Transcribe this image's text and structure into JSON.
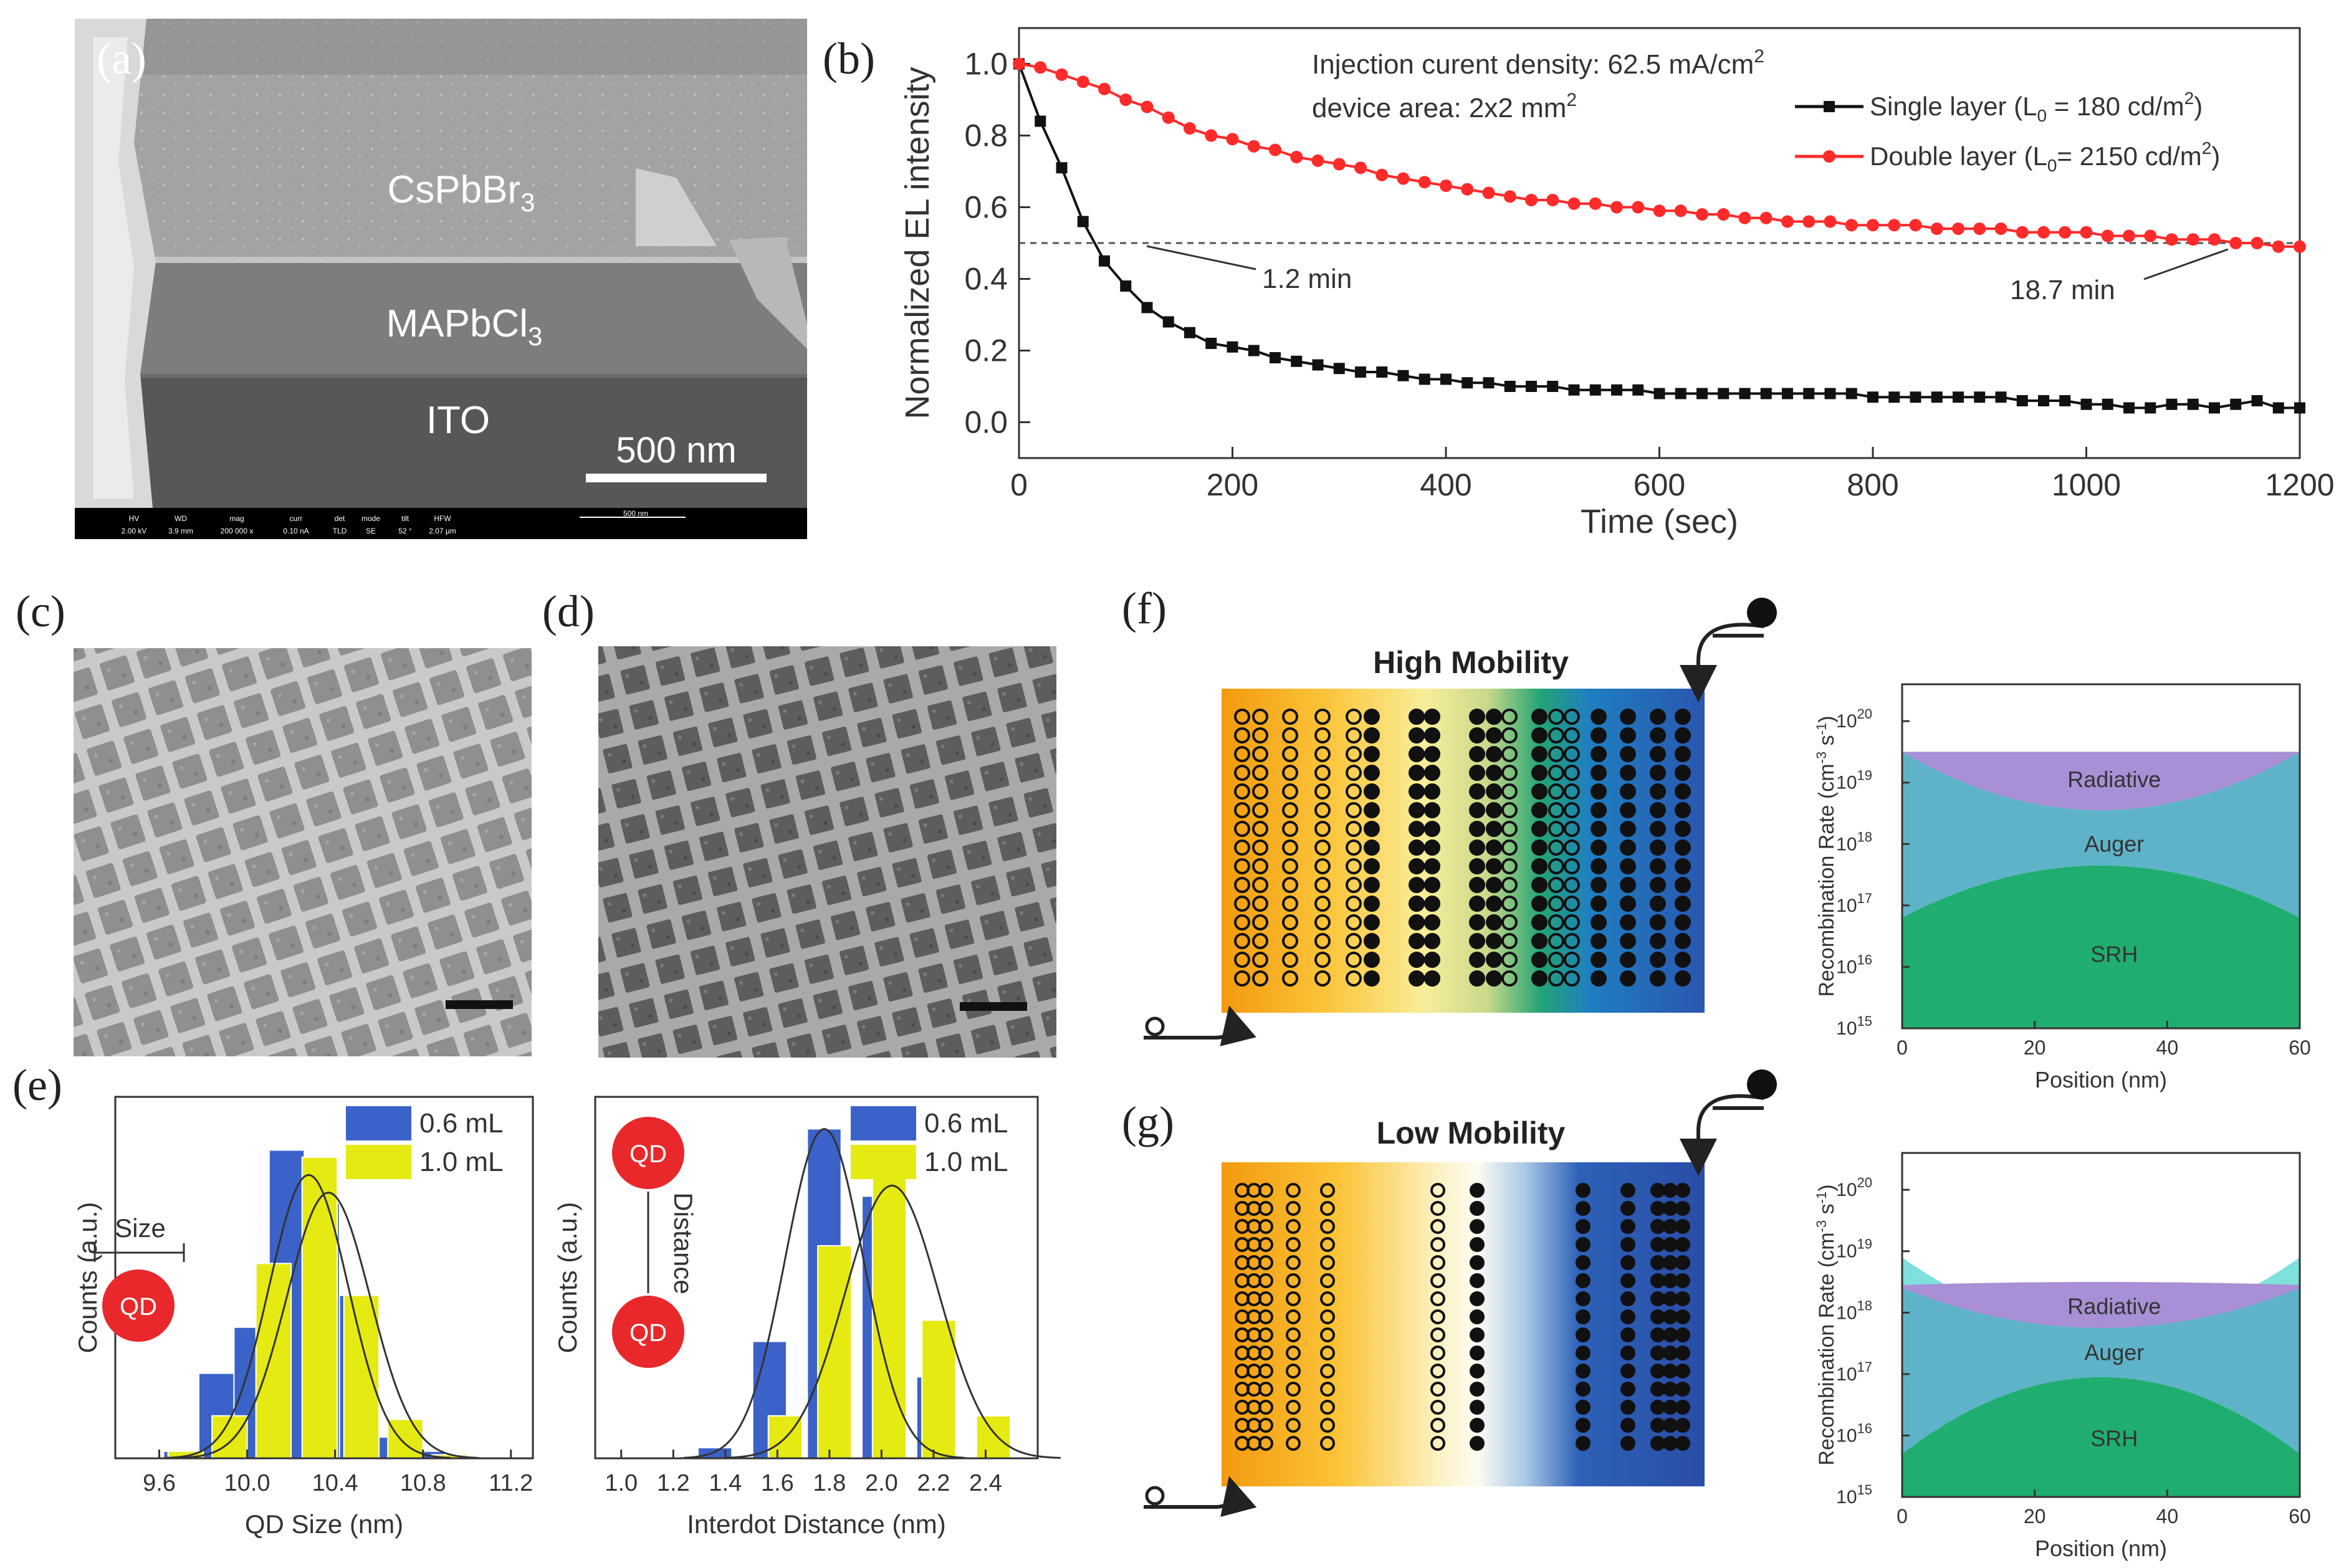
{
  "figure": {
    "panel_labels": {
      "a": "(a)",
      "b": "(b)",
      "c": "(c)",
      "d": "(d)",
      "e": "(e)",
      "f": "(f)",
      "g": "(g)"
    }
  },
  "panel_a": {
    "layers": [
      "CsPbBr3",
      "MAPbCl3",
      "ITO"
    ],
    "scalebar_label": "500 nm",
    "info_bar": {
      "fields": [
        {
          "head": "HV",
          "val": "2.00 kV"
        },
        {
          "head": "WD",
          "val": "3.9 mm"
        },
        {
          "head": "mag",
          "val": "200 000 x"
        },
        {
          "head": "curr",
          "val": "0.10 nA"
        },
        {
          "head": "det",
          "val": "TLD"
        },
        {
          "head": "mode",
          "val": "SE"
        },
        {
          "head": "tilt",
          "val": "52 °"
        },
        {
          "head": "HFW",
          "val": "2.07 µm"
        }
      ],
      "scale_text": "500 nm"
    }
  },
  "chart_data": [
    {
      "id": "b",
      "type": "line",
      "title": "",
      "xlabel": "Time (sec)",
      "ylabel": "Normalized EL intensity",
      "xlim": [
        0,
        1200
      ],
      "ylim": [
        -0.1,
        1.1
      ],
      "x_ticks": [
        0,
        200,
        400,
        600,
        800,
        1000,
        1200
      ],
      "y_ticks": [
        0.0,
        0.2,
        0.4,
        0.6,
        0.8,
        1.0
      ],
      "annotations": {
        "line1": "Injection curent density: 62.5 mA/cm",
        "line1_sup": "2",
        "line2": "device area: 2x2 mm",
        "line2_sup": "2",
        "t_single": "1.2 min",
        "t_double": "18.7 min"
      },
      "threshold": 0.5,
      "legend": [
        {
          "name": "Single layer (L",
          "sub": "0",
          "tail": " = 180 cd/m",
          "sup": "2",
          "end": ")",
          "color": "#111111"
        },
        {
          "name": "Double layer (L",
          "sub": "0",
          "tail": "= 2150 cd/m",
          "sup": "2",
          "end": ")",
          "color": "#ff2a2a"
        }
      ],
      "series": [
        {
          "name": "Single layer",
          "color": "#111111",
          "x": [
            0,
            20,
            40,
            60,
            80,
            100,
            120,
            140,
            160,
            180,
            200,
            220,
            240,
            260,
            280,
            300,
            320,
            340,
            360,
            380,
            400,
            420,
            440,
            460,
            480,
            500,
            520,
            540,
            560,
            580,
            600,
            620,
            640,
            660,
            680,
            700,
            720,
            740,
            760,
            780,
            800,
            820,
            840,
            860,
            880,
            900,
            920,
            940,
            960,
            980,
            1000,
            1020,
            1040,
            1060,
            1080,
            1100,
            1120,
            1140,
            1160,
            1180,
            1200
          ],
          "values": [
            1.0,
            0.84,
            0.71,
            0.56,
            0.45,
            0.38,
            0.32,
            0.28,
            0.25,
            0.22,
            0.21,
            0.2,
            0.18,
            0.17,
            0.16,
            0.15,
            0.14,
            0.14,
            0.13,
            0.12,
            0.12,
            0.11,
            0.11,
            0.1,
            0.1,
            0.1,
            0.09,
            0.09,
            0.09,
            0.09,
            0.08,
            0.08,
            0.08,
            0.08,
            0.08,
            0.08,
            0.08,
            0.08,
            0.08,
            0.08,
            0.07,
            0.07,
            0.07,
            0.07,
            0.07,
            0.07,
            0.07,
            0.06,
            0.06,
            0.06,
            0.05,
            0.05,
            0.04,
            0.04,
            0.05,
            0.05,
            0.04,
            0.05,
            0.06,
            0.04,
            0.04
          ]
        },
        {
          "name": "Double layer",
          "color": "#ff2a2a",
          "x": [
            0,
            20,
            40,
            60,
            80,
            100,
            120,
            140,
            160,
            180,
            200,
            220,
            240,
            260,
            280,
            300,
            320,
            340,
            360,
            380,
            400,
            420,
            440,
            460,
            480,
            500,
            520,
            540,
            560,
            580,
            600,
            620,
            640,
            660,
            680,
            700,
            720,
            740,
            760,
            780,
            800,
            820,
            840,
            860,
            880,
            900,
            920,
            940,
            960,
            980,
            1000,
            1020,
            1040,
            1060,
            1080,
            1100,
            1120,
            1140,
            1160,
            1180,
            1200
          ],
          "values": [
            1.0,
            0.99,
            0.97,
            0.95,
            0.93,
            0.9,
            0.88,
            0.85,
            0.82,
            0.8,
            0.79,
            0.77,
            0.76,
            0.74,
            0.73,
            0.72,
            0.71,
            0.69,
            0.68,
            0.67,
            0.66,
            0.65,
            0.64,
            0.63,
            0.62,
            0.62,
            0.61,
            0.61,
            0.6,
            0.6,
            0.59,
            0.59,
            0.58,
            0.58,
            0.57,
            0.57,
            0.56,
            0.56,
            0.56,
            0.55,
            0.55,
            0.55,
            0.55,
            0.54,
            0.54,
            0.54,
            0.54,
            0.53,
            0.53,
            0.53,
            0.53,
            0.52,
            0.52,
            0.52,
            0.51,
            0.51,
            0.51,
            0.5,
            0.5,
            0.49,
            0.49
          ]
        }
      ]
    },
    {
      "id": "e1",
      "type": "bar",
      "xlabel": "QD Size (nm)",
      "ylabel": "Counts (a.u.)",
      "xlim": [
        9.4,
        11.3
      ],
      "ylim": [
        0,
        1
      ],
      "x_ticks": [
        9.6,
        10.0,
        10.4,
        10.8,
        11.2
      ],
      "bin_width": 0.16,
      "legend": [
        "0.6 mL",
        "1.0 mL"
      ],
      "inset": {
        "label": "Size",
        "circle": "QD"
      },
      "series": [
        {
          "name": "0.6 mL",
          "color": "#3a62c8",
          "x": [
            9.7,
            9.86,
            10.02,
            10.18,
            10.34,
            10.5,
            10.66,
            10.82
          ],
          "values": [
            0.02,
            0.24,
            0.37,
            0.87,
            0.72,
            0.46,
            0.06,
            0.02
          ]
        },
        {
          "name": "1.0 mL",
          "color": "#e6ea13",
          "x": [
            9.72,
            9.92,
            10.12,
            10.33,
            10.52,
            10.72,
            10.92
          ],
          "values": [
            0.02,
            0.12,
            0.55,
            0.85,
            0.46,
            0.11,
            0.01
          ]
        }
      ],
      "fits": [
        {
          "name": "0.6 mL fit",
          "mu": 10.28,
          "sigma": 0.18,
          "peak": 0.8
        },
        {
          "name": "1.0 mL fit",
          "mu": 10.37,
          "sigma": 0.19,
          "peak": 0.75
        }
      ]
    },
    {
      "id": "e2",
      "type": "bar",
      "xlabel": "Interdot Distance (nm)",
      "ylabel": "Counts (a.u.)",
      "xlim": [
        0.9,
        2.6
      ],
      "ylim": [
        0,
        1
      ],
      "x_ticks": [
        1.0,
        1.2,
        1.4,
        1.6,
        1.8,
        2.0,
        2.2,
        2.4
      ],
      "bin_width": 0.13,
      "legend": [
        "0.6 mL",
        "1.0 mL"
      ],
      "inset": {
        "label": "Distance",
        "circle_top": "QD",
        "circle_bottom": "QD"
      },
      "series": [
        {
          "name": "0.6 mL",
          "color": "#3a62c8",
          "x": [
            1.36,
            1.57,
            1.78,
            1.99,
            2.2
          ],
          "values": [
            0.03,
            0.33,
            0.93,
            0.74,
            0.23
          ]
        },
        {
          "name": "1.0 mL",
          "color": "#e6ea13",
          "x": [
            1.63,
            1.82,
            2.03,
            2.22,
            2.43
          ],
          "values": [
            0.12,
            0.6,
            0.84,
            0.39,
            0.12
          ]
        }
      ],
      "fits": [
        {
          "name": "0.6 mL fit",
          "mu": 1.78,
          "sigma": 0.15,
          "peak": 0.93
        },
        {
          "name": "1.0 mL fit",
          "mu": 2.04,
          "sigma": 0.18,
          "peak": 0.77
        }
      ]
    },
    {
      "id": "f",
      "type": "area",
      "xlabel": "Position (nm)",
      "ylabel": "Recombination Rate (cm-3 s-1)",
      "ylabel_parts": {
        "main": "Recombination Rate (cm",
        "sup1": "-3",
        "mid": " s",
        "sup2": "-1",
        "end": ")"
      },
      "xlim": [
        0,
        60
      ],
      "x_ticks": [
        0,
        20,
        40,
        60
      ],
      "y_log_range": [
        15,
        20.6
      ],
      "y_tick_exponents": [
        15,
        16,
        17,
        18,
        19,
        20
      ],
      "y_tick_base": "10",
      "labels": [
        "Radiative",
        "Auger",
        "SRH"
      ],
      "colors": {
        "radiative": "#a88fd6",
        "auger": "#5fb3c9",
        "srh": "#1fae6f"
      },
      "bands": {
        "srh_top": {
          "edge": 16.8,
          "center": 17.65
        },
        "auger_top": {
          "edge": 19.5,
          "center": 18.55
        },
        "radiative_top": {
          "edge": 19.5,
          "center": 19.5
        }
      }
    },
    {
      "id": "g",
      "type": "area",
      "xlabel": "Position (nm)",
      "ylabel": "Recombination Rate (cm-3 s-1)",
      "ylabel_parts": {
        "main": "Recombination Rate (cm",
        "sup1": "-3",
        "mid": " s",
        "sup2": "-1",
        "end": ")"
      },
      "xlim": [
        0,
        60
      ],
      "x_ticks": [
        0,
        20,
        40,
        60
      ],
      "y_log_range": [
        15,
        20.6
      ],
      "y_tick_exponents": [
        15,
        16,
        17,
        18,
        19,
        20
      ],
      "y_tick_base": "10",
      "labels": [
        "Radiative",
        "Auger",
        "SRH"
      ],
      "colors": {
        "radiative": "#a88fd6",
        "auger": "#5fb3c9",
        "srh": "#1fae6f",
        "edge": "#7fe0dc"
      },
      "bands": {
        "srh_top": {
          "edge": 15.7,
          "center": 16.95
        },
        "auger_top": {
          "edge": 18.4,
          "center": 17.75
        },
        "radiative_top": {
          "edge": 18.45,
          "center": 18.5
        },
        "auger_peak_edge": 18.9
      }
    }
  ],
  "panel_f": {
    "title": "High Mobility"
  },
  "panel_g": {
    "title": "Low Mobility"
  },
  "diagram_colors": {
    "orange": "#f39c12",
    "yellow": "#fde68a",
    "pale": "#fdfbe6",
    "green": "#1f9c70",
    "blue": "#2c5fb6",
    "dark_blue": "#2a4da6"
  }
}
